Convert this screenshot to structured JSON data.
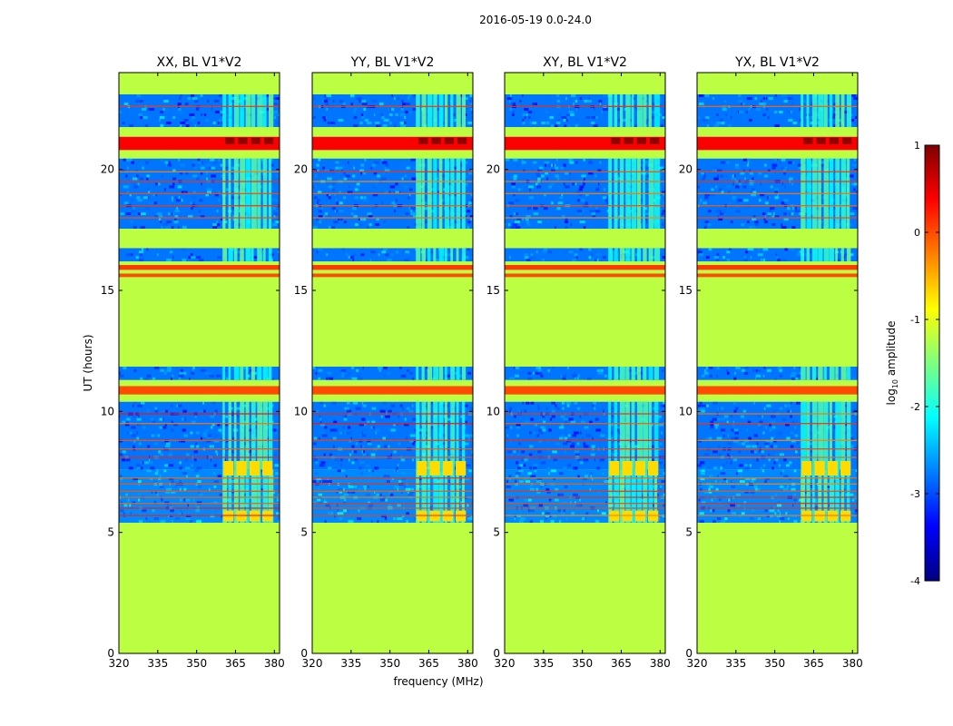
{
  "chart_data": {
    "type": "heatmap",
    "suptitle": "2016-05-19 0.0-24.0",
    "xlabel": "frequency (MHz)",
    "ylabel": "UT (hours)",
    "xlim": [
      320,
      382
    ],
    "ylim": [
      0,
      24
    ],
    "xticks": [
      320,
      335,
      350,
      365,
      380
    ],
    "yticks": [
      0,
      5,
      10,
      15,
      20
    ],
    "panels": [
      {
        "title": "XX, BL V1*V2"
      },
      {
        "title": "YY, BL V1*V2"
      },
      {
        "title": "XY, BL V1*V2"
      },
      {
        "title": "YX, BL V1*V2"
      }
    ],
    "colorbar": {
      "label_prefix": "log",
      "label_sub": "10",
      "label_suffix": " amplitude",
      "range": [
        -4,
        1
      ],
      "ticks": [
        1,
        0,
        -1,
        -2,
        -3,
        -4
      ],
      "colors": [
        "#00007f",
        "#0000ff",
        "#007fff",
        "#00ffff",
        "#7fff7f",
        "#ffff00",
        "#ff7f00",
        "#ff0000",
        "#7f0000"
      ]
    },
    "background_value": -1.2,
    "noise_band_mhz": [
      360,
      380
    ],
    "time_segments": [
      {
        "start": 0,
        "end": 5.4,
        "value": -1.2
      },
      {
        "start": 5.4,
        "end": 7.6,
        "value": -2.7
      },
      {
        "start": 7.6,
        "end": 10.4,
        "value": -2.8
      },
      {
        "start": 10.4,
        "end": 10.7,
        "value": -1.2
      },
      {
        "start": 10.7,
        "end": 11.05,
        "value": 0.0
      },
      {
        "start": 11.05,
        "end": 11.3,
        "value": -1.2
      },
      {
        "start": 11.3,
        "end": 11.85,
        "value": -2.8
      },
      {
        "start": 11.85,
        "end": 15.55,
        "value": -1.2
      },
      {
        "start": 15.55,
        "end": 15.7,
        "value": 0.0
      },
      {
        "start": 15.7,
        "end": 15.85,
        "value": -1.2
      },
      {
        "start": 15.85,
        "end": 16.05,
        "value": 0.1
      },
      {
        "start": 16.05,
        "end": 16.2,
        "value": -1.2
      },
      {
        "start": 16.2,
        "end": 16.75,
        "value": -2.8
      },
      {
        "start": 16.75,
        "end": 17.55,
        "value": -1.2
      },
      {
        "start": 17.55,
        "end": 20.45,
        "value": -2.8
      },
      {
        "start": 20.45,
        "end": 20.8,
        "value": -1.2
      },
      {
        "start": 20.8,
        "end": 21.35,
        "value": 0.4
      },
      {
        "start": 21.35,
        "end": 21.75,
        "value": -1.2
      },
      {
        "start": 21.75,
        "end": 23.1,
        "value": -2.8
      },
      {
        "start": 23.1,
        "end": 24,
        "value": -1.2
      }
    ],
    "horizontal_lines_ut": [
      5.7,
      6.0,
      6.2,
      6.45,
      6.7,
      7.0,
      7.25,
      8.1,
      8.45,
      8.8,
      9.5,
      9.9,
      18.0,
      18.5,
      19.0,
      19.5,
      19.9,
      22.6
    ]
  }
}
